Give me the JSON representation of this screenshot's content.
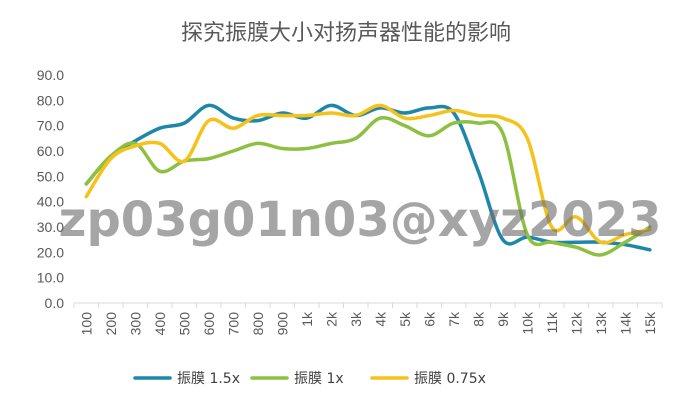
{
  "chart_data": {
    "type": "line",
    "title": "探究振膜大小对扬声器性能的影响",
    "xlabel": "",
    "ylabel": "",
    "categories": [
      "100",
      "200",
      "300",
      "400",
      "500",
      "600",
      "700",
      "800",
      "900",
      "1k",
      "2k",
      "3k",
      "4k",
      "5k",
      "6k",
      "7k",
      "8k",
      "9k",
      "10k",
      "11k",
      "12k",
      "13k",
      "14k",
      "15k"
    ],
    "ylim": [
      0,
      90
    ],
    "yticks": [
      "0.0",
      "10.0",
      "20.0",
      "30.0",
      "40.0",
      "50.0",
      "60.0",
      "70.0",
      "80.0",
      "90.0"
    ],
    "grid": false,
    "legend_position": "bottom",
    "series": [
      {
        "name": "振膜 1.5x",
        "color": "#1E86A8",
        "values": [
          47,
          58,
          64,
          69,
          71,
          78,
          73,
          72,
          75,
          73,
          78,
          74,
          77,
          75,
          77,
          75,
          52,
          25,
          26,
          24,
          24,
          24,
          23,
          21
        ]
      },
      {
        "name": "振膜 1x",
        "color": "#8DC040",
        "values": [
          47,
          58,
          63,
          52,
          56,
          57,
          60,
          63,
          61,
          61,
          63,
          65,
          73,
          70,
          66,
          71,
          71,
          67,
          27,
          24,
          22,
          19,
          24,
          30
        ]
      },
      {
        "name": "振膜 0.75x",
        "color": "#F5C21B",
        "values": [
          42,
          57,
          62,
          63,
          56,
          72,
          69,
          74,
          74,
          74,
          75,
          74,
          78,
          73,
          74,
          76,
          74,
          73,
          65,
          30,
          34,
          24,
          27,
          29
        ]
      }
    ]
  },
  "watermark": "zp03g01n03@xyz2023"
}
